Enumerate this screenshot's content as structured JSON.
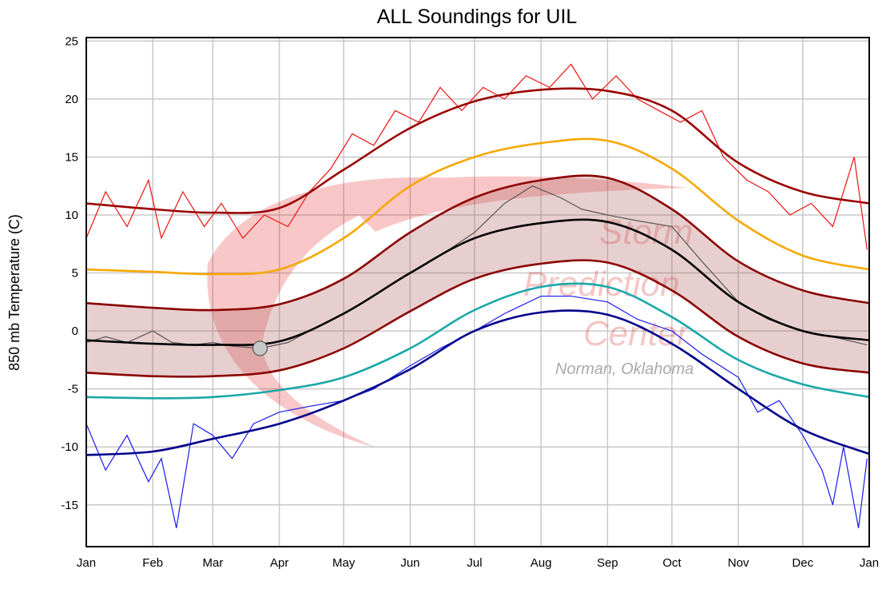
{
  "chart_data": {
    "type": "line",
    "title": "ALL Soundings for UIL",
    "ylabel": "850 mb Temperature (C)",
    "xlabel": "",
    "ylim": [
      -18.6,
      25.3
    ],
    "yticks": [
      -15,
      -10,
      -5,
      0,
      5,
      10,
      15,
      20,
      25
    ],
    "xticks": [
      "Jan",
      "Feb",
      "Mar",
      "Apr",
      "May",
      "Jun",
      "Jul",
      "Aug",
      "Sep",
      "Oct",
      "Nov",
      "Dec",
      "Jan"
    ],
    "grid": true,
    "legend": "none",
    "watermark": {
      "logo_text": "SPC",
      "lines": [
        "Storm",
        "Prediction",
        "Center"
      ],
      "location": "Norman, Oklahoma"
    },
    "smooth_x": [
      "Jan",
      "Feb",
      "Mar",
      "Apr",
      "May",
      "Jun",
      "Jul",
      "Aug",
      "Sep",
      "Oct",
      "Nov",
      "Dec",
      "Jan"
    ],
    "smooth_series": [
      {
        "key": "max_record",
        "color": "#990000",
        "values": [
          11,
          10.5,
          10.2,
          10.6,
          13.9,
          17.5,
          19.8,
          20.8,
          20.7,
          19,
          14.5,
          12,
          11
        ]
      },
      {
        "key": "upper_percentile",
        "color": "#f5a800",
        "values": [
          5.3,
          5.1,
          4.9,
          5.3,
          8,
          12.5,
          15,
          16.2,
          16.4,
          14,
          9.5,
          6.5,
          5.3
        ]
      },
      {
        "key": "upper_band",
        "color": "#8b0000",
        "values": [
          2.4,
          2.0,
          1.8,
          2.3,
          4.5,
          8.5,
          11.5,
          13,
          13.2,
          10.5,
          6,
          3.5,
          2.4
        ]
      },
      {
        "key": "mean",
        "color": "#000000",
        "values": [
          -0.8,
          -1.1,
          -1.2,
          -0.9,
          1.5,
          5,
          8,
          9.3,
          9.4,
          7,
          2.5,
          0,
          -0.8
        ]
      },
      {
        "key": "lower_band",
        "color": "#8b0000",
        "values": [
          -3.6,
          -3.9,
          -3.9,
          -3.4,
          -1.5,
          1.7,
          4.5,
          5.8,
          5.9,
          3.5,
          -0.5,
          -2.8,
          -3.6
        ]
      },
      {
        "key": "lower_percentile",
        "color": "#1aa8a8",
        "values": [
          -5.7,
          -5.8,
          -5.7,
          -5.1,
          -4,
          -1.5,
          1.8,
          3.8,
          3.8,
          1.2,
          -2.5,
          -4.6,
          -5.7
        ]
      },
      {
        "key": "min_record",
        "color": "#00008b",
        "values": [
          -10.7,
          -10.4,
          -9.3,
          -8,
          -6,
          -3.3,
          0,
          1.6,
          1.4,
          -1.1,
          -5,
          -8.5,
          -10.6
        ]
      }
    ],
    "band_fill": "#b06060",
    "observed_series": [
      {
        "key": "daily_max",
        "color": "#ee1111",
        "points": [
          [
            "01-01",
            8
          ],
          [
            "01-10",
            12
          ],
          [
            "01-20",
            9
          ],
          [
            "01-30",
            13
          ],
          [
            "02-05",
            8
          ],
          [
            "02-15",
            12
          ],
          [
            "02-25",
            9
          ],
          [
            "03-05",
            11
          ],
          [
            "03-15",
            8
          ],
          [
            "03-25",
            10
          ],
          [
            "04-05",
            9
          ],
          [
            "04-15",
            12
          ],
          [
            "04-25",
            14
          ],
          [
            "05-05",
            17
          ],
          [
            "05-15",
            16
          ],
          [
            "05-25",
            19
          ],
          [
            "06-05",
            18
          ],
          [
            "06-15",
            21
          ],
          [
            "06-25",
            19
          ],
          [
            "07-05",
            21
          ],
          [
            "07-15",
            20
          ],
          [
            "07-25",
            22
          ],
          [
            "08-05",
            21
          ],
          [
            "08-15",
            23
          ],
          [
            "08-25",
            20
          ],
          [
            "09-05",
            22
          ],
          [
            "09-15",
            20
          ],
          [
            "09-25",
            19
          ],
          [
            "10-05",
            18
          ],
          [
            "10-15",
            19
          ],
          [
            "10-25",
            15
          ],
          [
            "11-05",
            13
          ],
          [
            "11-15",
            12
          ],
          [
            "11-25",
            10
          ],
          [
            "12-05",
            11
          ],
          [
            "12-15",
            9
          ],
          [
            "12-25",
            15
          ],
          [
            "12-31",
            7
          ]
        ]
      },
      {
        "key": "daily_min",
        "color": "#1a1aee",
        "points": [
          [
            "01-01",
            -8
          ],
          [
            "01-10",
            -12
          ],
          [
            "01-20",
            -9
          ],
          [
            "01-30",
            -13
          ],
          [
            "02-05",
            -11
          ],
          [
            "02-12",
            -17
          ],
          [
            "02-20",
            -8
          ],
          [
            "03-01",
            -9
          ],
          [
            "03-10",
            -11
          ],
          [
            "03-20",
            -8
          ],
          [
            "04-01",
            -7
          ],
          [
            "04-15",
            -6.5
          ],
          [
            "05-01",
            -6
          ],
          [
            "05-15",
            -5
          ],
          [
            "06-01",
            -3
          ],
          [
            "06-15",
            -1.5
          ],
          [
            "07-01",
            0
          ],
          [
            "07-15",
            1.5
          ],
          [
            "08-01",
            3
          ],
          [
            "08-15",
            3
          ],
          [
            "09-01",
            2.5
          ],
          [
            "09-15",
            1
          ],
          [
            "10-01",
            0
          ],
          [
            "10-15",
            -2
          ],
          [
            "11-01",
            -4
          ],
          [
            "11-10",
            -7
          ],
          [
            "11-20",
            -6
          ],
          [
            "12-01",
            -9
          ],
          [
            "12-10",
            -12
          ],
          [
            "12-15",
            -15
          ],
          [
            "12-20",
            -10
          ],
          [
            "12-27",
            -17
          ],
          [
            "12-31",
            -11
          ]
        ]
      },
      {
        "key": "observed",
        "color": "#555555",
        "points": [
          [
            "01-01",
            -1
          ],
          [
            "01-10",
            -0.5
          ],
          [
            "01-20",
            -1
          ],
          [
            "02-01",
            0
          ],
          [
            "02-10",
            -1
          ],
          [
            "02-20",
            -1.2
          ],
          [
            "03-01",
            -1
          ],
          [
            "03-10",
            -1.3
          ],
          [
            "03-23",
            -1.5
          ],
          [
            "04-05",
            -1
          ],
          [
            "04-15",
            0
          ],
          [
            "05-01",
            1.5
          ],
          [
            "05-15",
            3
          ],
          [
            "06-01",
            5
          ],
          [
            "06-15",
            6.5
          ],
          [
            "07-01",
            8.5
          ],
          [
            "07-15",
            11
          ],
          [
            "07-28",
            12.5
          ],
          [
            "08-10",
            11.5
          ],
          [
            "08-20",
            10.5
          ],
          [
            "09-01",
            10
          ],
          [
            "09-15",
            9.5
          ],
          [
            "10-01",
            9
          ],
          [
            "10-15",
            6
          ],
          [
            "11-01",
            2.5
          ],
          [
            "11-15",
            1
          ],
          [
            "12-01",
            0
          ],
          [
            "12-15",
            -0.5
          ],
          [
            "12-31",
            -1.2
          ]
        ]
      }
    ],
    "current_point": {
      "date": "03-23",
      "value": -1.5,
      "color": "#c8c8c8"
    }
  }
}
